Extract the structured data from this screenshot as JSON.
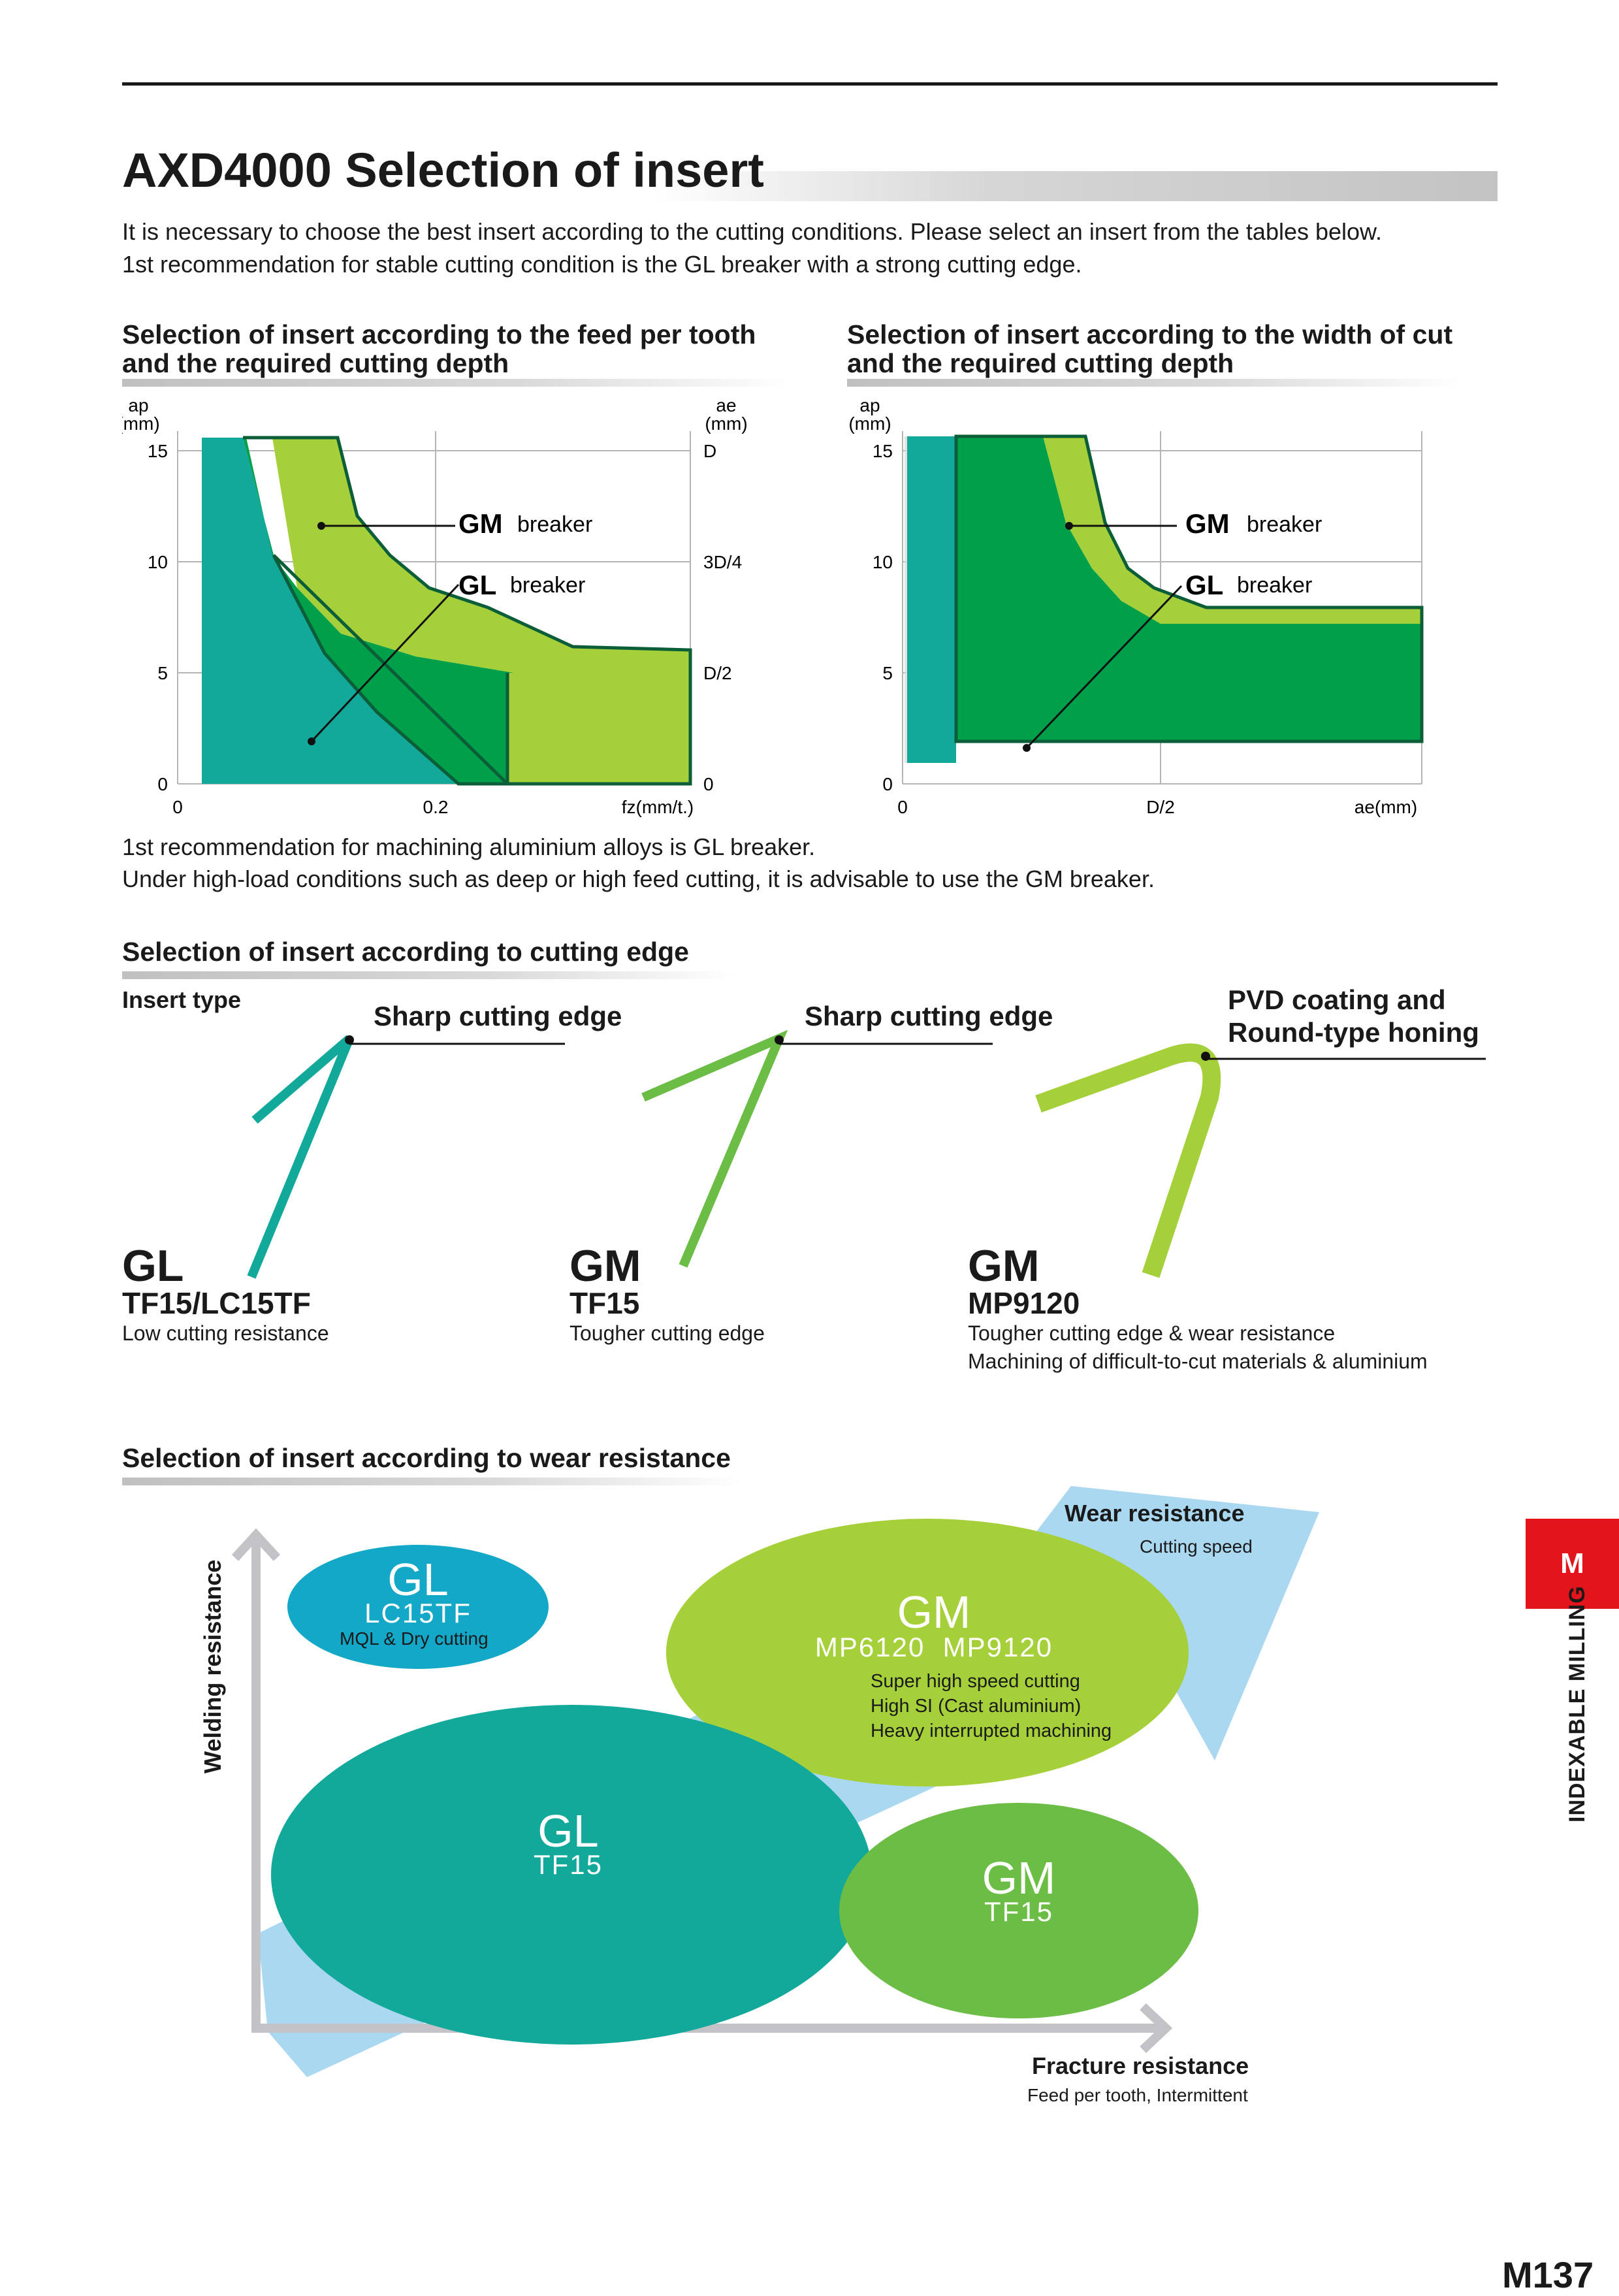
{
  "title": "AXD4000 Selection of insert",
  "intro": [
    "It is necessary to choose the best insert according to the cutting conditions. Please select an insert from the tables below.",
    "1st recommendation for stable cutting condition is the GL breaker with a strong cutting edge."
  ],
  "feed_section": {
    "heading": [
      "Selection of insert according to the feed per tooth",
      "and the required cutting depth"
    ],
    "left_axis_label": [
      "ap",
      "(mm)"
    ],
    "right_axis_label": [
      "ae",
      "(mm)"
    ],
    "y_ticks": [
      "15",
      "10",
      "5",
      "0"
    ],
    "right_ticks": [
      "D",
      "3D/4",
      "D/2",
      "0"
    ],
    "x_ticks": [
      "0",
      "0.2",
      "fz(mm/t.)"
    ],
    "gm_code": "GM",
    "gm_word": "breaker",
    "gl_code": "GL",
    "gl_word": "breaker"
  },
  "width_section": {
    "heading": [
      "Selection of insert according to the width of cut",
      "and the required cutting depth"
    ],
    "left_axis_label": [
      "ap",
      "(mm)"
    ],
    "y_ticks": [
      "15",
      "10",
      "5",
      "0"
    ],
    "x_ticks": [
      "0",
      "D/2",
      "ae(mm)"
    ],
    "gm_code": "GM",
    "gm_word": "breaker",
    "gl_code": "GL",
    "gl_word": "breaker"
  },
  "recommendation": [
    "1st recommendation for machining aluminium alloys is GL breaker.",
    "Under high-load conditions such as deep or high feed cutting, it is advisable to use the GM breaker."
  ],
  "edge_section": {
    "heading": "Selection of insert according to cutting edge",
    "insert_type_label": "Insert type",
    "inserts": [
      {
        "edge_label": "Sharp cutting edge",
        "code": "GL",
        "grade": "TF15/LC15TF",
        "desc": [
          "Low cutting resistance"
        ]
      },
      {
        "edge_label": "Sharp cutting edge",
        "code": "GM",
        "grade": "TF15",
        "desc": [
          "Tougher cutting edge"
        ]
      },
      {
        "edge_label": "PVD coating and\nRound-type honing",
        "edge_label_lines": [
          "PVD coating and",
          "Round-type honing"
        ],
        "code": "GM",
        "grade": "MP9120",
        "desc": [
          "Tougher cutting edge & wear resistance",
          "Machining of difficult-to-cut materials & aluminium"
        ]
      }
    ]
  },
  "wear_section": {
    "heading": "Selection of insert according to wear resistance",
    "wear_title": "Wear resistance",
    "wear_sub": "Cutting speed",
    "y_label": "Welding resistance",
    "x_title": "Fracture resistance",
    "x_sub": "Feed per tooth, Intermittent",
    "bubbles": {
      "gl_lc": {
        "code": "GL",
        "grade": "LC15TF",
        "note": "MQL & Dry cutting"
      },
      "gm_mp": {
        "code": "GM",
        "grade": "MP6120  MP9120",
        "notes": [
          "Super high speed cutting",
          "High SI (Cast aluminium)",
          "Heavy interrupted machining"
        ]
      },
      "gl_tf": {
        "code": "GL",
        "grade": "TF15"
      },
      "gm_tf": {
        "code": "GM",
        "grade": "TF15"
      }
    }
  },
  "side_tab": {
    "letter": "M",
    "label": "INDEXABLE MILLING"
  },
  "page_number": "M137",
  "colors": {
    "gl_teal": "#12a99b",
    "gm_dark_green": "#00a04a",
    "gm_light_green": "#a5d03a",
    "gm_mid_green": "#6cbd45",
    "sky_blue": "#aad8f1",
    "lc_blue": "#13a7c8",
    "accent_red": "#e2141c"
  }
}
